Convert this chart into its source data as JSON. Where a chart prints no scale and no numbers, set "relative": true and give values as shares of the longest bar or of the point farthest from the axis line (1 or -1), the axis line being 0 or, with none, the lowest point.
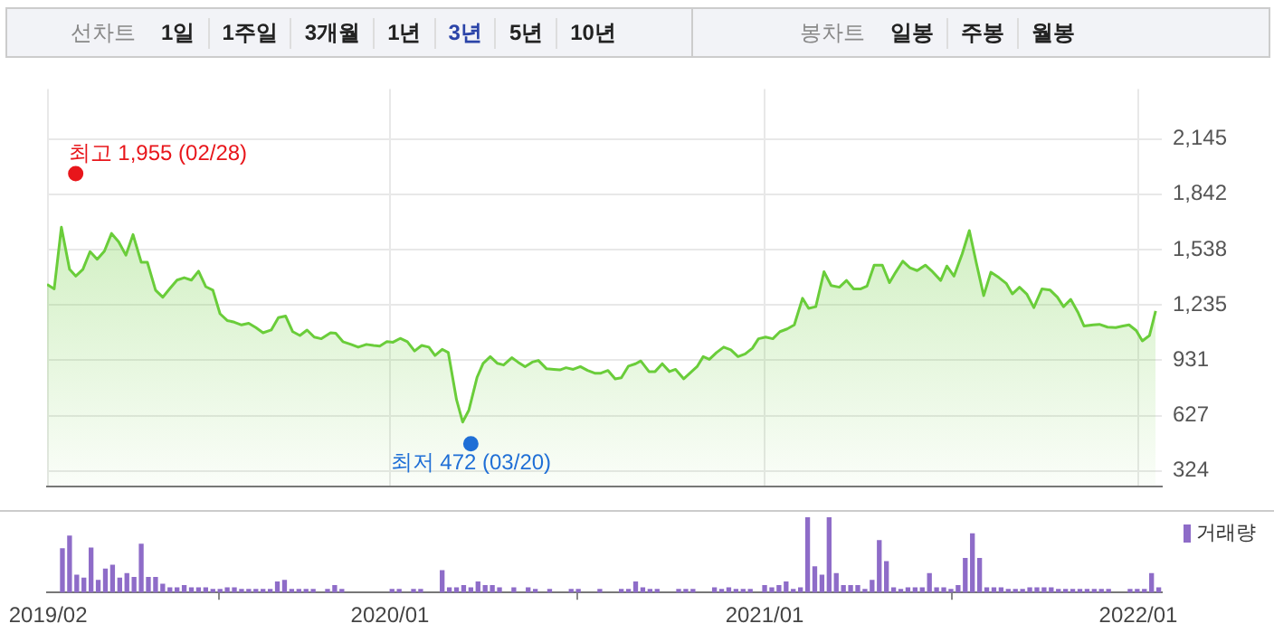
{
  "chart_data": [
    {
      "type": "other",
      "annotations": [
        "선차트",
        "1일",
        "1주일",
        "3개월",
        "1년",
        "3년",
        "5년",
        "10년",
        "봉차트",
        "일봉",
        "주봉",
        "월봉"
      ]
    },
    {
      "type": "area",
      "grid": true,
      "tick_labels": "y",
      "xlim": [
        "2019-01-31",
        "2022-01-24"
      ],
      "ylim": [
        240,
        2420
      ],
      "xticks": [
        {
          "value": "2019-02-01",
          "label": null
        },
        {
          "value": "2020-01-01",
          "label": null
        },
        {
          "value": "2021-01-01",
          "label": null
        },
        {
          "value": "2022-01-01",
          "label": null
        }
      ],
      "yticks": [
        {
          "value": 324,
          "label": "324"
        },
        {
          "value": 627,
          "label": "627"
        },
        {
          "value": 931,
          "label": "931"
        },
        {
          "value": 1235,
          "label": "1,235"
        },
        {
          "value": 1538,
          "label": "1,538"
        },
        {
          "value": 1842,
          "label": "1,842"
        },
        {
          "value": 2145,
          "label": "2,145"
        }
      ],
      "annotations": [
        {
          "text": "최고 1,955 (02/28)",
          "x": "2019-02-28",
          "y": 1955
        },
        {
          "text": "최저 472 (03/20)",
          "x": "2020-03-20",
          "y": 472
        }
      ],
      "series": [
        {
          "type": "scatter",
          "color": "#e8161b",
          "x": [
            "2019-02-28"
          ],
          "values": [
            1955
          ]
        },
        {
          "type": "scatter",
          "color": "#1f6fd6",
          "x": [
            "2020-03-20"
          ],
          "values": [
            472
          ]
        },
        {
          "color": "#6acd3a",
          "x": [
            "2019-01-31",
            "2019-02-07",
            "2019-02-14",
            "2019-02-22",
            "2019-02-28",
            "2019-03-07",
            "2019-03-14",
            "2019-03-21",
            "2019-03-28",
            "2019-04-04",
            "2019-04-11",
            "2019-04-18",
            "2019-04-25",
            "2019-05-03",
            "2019-05-09",
            "2019-05-17",
            "2019-05-24",
            "2019-05-31",
            "2019-06-07",
            "2019-06-14",
            "2019-06-21",
            "2019-06-28",
            "2019-07-05",
            "2019-07-12",
            "2019-07-19",
            "2019-07-26",
            "2019-08-02",
            "2019-08-09",
            "2019-08-16",
            "2019-08-23",
            "2019-08-30",
            "2019-09-07",
            "2019-09-14",
            "2019-09-21",
            "2019-09-28",
            "2019-10-05",
            "2019-10-12",
            "2019-10-19",
            "2019-10-26",
            "2019-11-04",
            "2019-11-09",
            "2019-11-16",
            "2019-11-24",
            "2019-12-01",
            "2019-12-09",
            "2019-12-16",
            "2019-12-22",
            "2019-12-29",
            "2020-01-04",
            "2020-01-11",
            "2020-01-18",
            "2020-01-25",
            "2020-02-01",
            "2020-02-08",
            "2020-02-14",
            "2020-02-21",
            "2020-02-27",
            "2020-03-06",
            "2020-03-12",
            "2020-03-18",
            "2020-03-26",
            "2020-04-01",
            "2020-04-08",
            "2020-04-15",
            "2020-04-21",
            "2020-04-29",
            "2020-05-05",
            "2020-05-12",
            "2020-05-19",
            "2020-05-25",
            "2020-06-02",
            "2020-06-09",
            "2020-06-15",
            "2020-06-21",
            "2020-06-28",
            "2020-07-05",
            "2020-07-12",
            "2020-07-19",
            "2020-07-25",
            "2020-08-01",
            "2020-08-08",
            "2020-08-14",
            "2020-08-21",
            "2020-08-28",
            "2020-09-02",
            "2020-09-10",
            "2020-09-16",
            "2020-09-23",
            "2020-09-30",
            "2020-10-06",
            "2020-10-14",
            "2020-10-20",
            "2020-10-27",
            "2020-11-02",
            "2020-11-08",
            "2020-11-15",
            "2020-11-22",
            "2020-11-29",
            "2020-12-06",
            "2020-12-13",
            "2020-12-20",
            "2020-12-26",
            "2021-01-02",
            "2021-01-09",
            "2021-01-16",
            "2021-01-23",
            "2021-01-30",
            "2021-02-07",
            "2021-02-13",
            "2021-02-20",
            "2021-02-28",
            "2021-03-07",
            "2021-03-15",
            "2021-03-22",
            "2021-03-29",
            "2021-04-05",
            "2021-04-11",
            "2021-04-18",
            "2021-04-26",
            "2021-05-03",
            "2021-05-09",
            "2021-05-16",
            "2021-05-23",
            "2021-05-30",
            "2021-06-07",
            "2021-06-13",
            "2021-06-22",
            "2021-06-28",
            "2021-07-05",
            "2021-07-13",
            "2021-07-20",
            "2021-07-27",
            "2021-08-03",
            "2021-08-10",
            "2021-08-18",
            "2021-08-25",
            "2021-08-31",
            "2021-09-07",
            "2021-09-14",
            "2021-09-21",
            "2021-09-29",
            "2021-10-07",
            "2021-10-14",
            "2021-10-20",
            "2021-10-27",
            "2021-11-03",
            "2021-11-09",
            "2021-11-18",
            "2021-11-24",
            "2021-12-02",
            "2021-12-10",
            "2021-12-17",
            "2021-12-23",
            "2021-12-30",
            "2022-01-05",
            "2022-01-12",
            "2022-01-18"
          ],
          "values": [
            1347,
            1323,
            1661,
            1430,
            1393,
            1430,
            1527,
            1485,
            1530,
            1627,
            1581,
            1508,
            1621,
            1469,
            1469,
            1316,
            1277,
            1325,
            1371,
            1384,
            1371,
            1420,
            1335,
            1316,
            1186,
            1149,
            1140,
            1125,
            1134,
            1110,
            1082,
            1097,
            1165,
            1174,
            1088,
            1067,
            1097,
            1058,
            1049,
            1082,
            1079,
            1033,
            1018,
            1003,
            1018,
            1012,
            1009,
            1033,
            1030,
            1051,
            1033,
            982,
            1012,
            1003,
            957,
            991,
            973,
            715,
            592,
            656,
            836,
            914,
            951,
            914,
            905,
            945,
            921,
            896,
            921,
            930,
            884,
            881,
            878,
            890,
            881,
            896,
            875,
            860,
            860,
            875,
            829,
            835,
            899,
            912,
            927,
            869,
            869,
            912,
            869,
            881,
            829,
            860,
            896,
            951,
            936,
            973,
            1003,
            988,
            951,
            966,
            997,
            1049,
            1058,
            1049,
            1088,
            1103,
            1125,
            1271,
            1216,
            1225,
            1417,
            1341,
            1332,
            1369,
            1323,
            1323,
            1338,
            1453,
            1453,
            1357,
            1414,
            1475,
            1439,
            1423,
            1453,
            1423,
            1369,
            1448,
            1393,
            1515,
            1643,
            1460,
            1286,
            1414,
            1384,
            1353,
            1295,
            1332,
            1295,
            1220,
            1323,
            1316,
            1277,
            1225,
            1265,
            1195,
            1119,
            1125,
            1128,
            1113,
            1110,
            1119,
            1125,
            1094,
            1037,
            1067,
            1201
          ]
        }
      ]
    },
    {
      "type": "bar",
      "relative": true,
      "tick_labels": "x",
      "legend": "top right",
      "xlim": [
        "2019-01-31",
        "2022-01-24"
      ],
      "xticks": [
        {
          "value": "2019-02-01",
          "label": "2019/02"
        },
        {
          "value": "2020-01-01",
          "label": "2020/01"
        },
        {
          "value": "2021-01-01",
          "label": "2021/01"
        },
        {
          "value": "2022-01-01",
          "label": "2022/01"
        }
      ],
      "series": [
        {
          "name": "거래량",
          "color": "#8e6cc8",
          "x": [
            "2019-02-15",
            "2019-02-22",
            "2019-03-01",
            "2019-03-08",
            "2019-03-15",
            "2019-03-22",
            "2019-03-29",
            "2019-04-05",
            "2019-04-12",
            "2019-04-19",
            "2019-04-26",
            "2019-05-03",
            "2019-05-10",
            "2019-05-17",
            "2019-05-24",
            "2019-05-31",
            "2019-06-07",
            "2019-06-14",
            "2019-06-21",
            "2019-06-28",
            "2019-07-05",
            "2019-07-12",
            "2019-07-19",
            "2019-07-26",
            "2019-08-02",
            "2019-08-09",
            "2019-08-16",
            "2019-08-23",
            "2019-08-30",
            "2019-09-06",
            "2019-09-13",
            "2019-09-20",
            "2019-09-27",
            "2019-10-04",
            "2019-10-11",
            "2019-10-18",
            "2019-10-25",
            "2019-11-01",
            "2019-11-08",
            "2019-11-15",
            "2019-11-22",
            "2019-11-29",
            "2019-12-06",
            "2019-12-13",
            "2019-12-20",
            "2019-12-27",
            "2020-01-03",
            "2020-01-10",
            "2020-01-17",
            "2020-01-24",
            "2020-01-31",
            "2020-02-07",
            "2020-02-14",
            "2020-02-21",
            "2020-02-28",
            "2020-03-06",
            "2020-03-13",
            "2020-03-20",
            "2020-03-27",
            "2020-04-03",
            "2020-04-10",
            "2020-04-17",
            "2020-04-24",
            "2020-05-01",
            "2020-05-08",
            "2020-05-15",
            "2020-05-22",
            "2020-05-29",
            "2020-06-05",
            "2020-06-12",
            "2020-06-19",
            "2020-06-26",
            "2020-07-03",
            "2020-07-10",
            "2020-07-17",
            "2020-07-24",
            "2020-07-31",
            "2020-08-07",
            "2020-08-14",
            "2020-08-21",
            "2020-08-28",
            "2020-09-04",
            "2020-09-11",
            "2020-09-18",
            "2020-09-25",
            "2020-10-02",
            "2020-10-09",
            "2020-10-16",
            "2020-10-23",
            "2020-10-30",
            "2020-11-06",
            "2020-11-13",
            "2020-11-20",
            "2020-11-27",
            "2020-12-04",
            "2020-12-11",
            "2020-12-18",
            "2020-12-25",
            "2021-01-01",
            "2021-01-08",
            "2021-01-15",
            "2021-01-22",
            "2021-01-29",
            "2021-02-05",
            "2021-02-12",
            "2021-02-19",
            "2021-02-26",
            "2021-03-05",
            "2021-03-12",
            "2021-03-19",
            "2021-03-26",
            "2021-04-02",
            "2021-04-09",
            "2021-04-16",
            "2021-04-23",
            "2021-04-30",
            "2021-05-07",
            "2021-05-14",
            "2021-05-21",
            "2021-05-28",
            "2021-06-04",
            "2021-06-11",
            "2021-06-18",
            "2021-06-25",
            "2021-07-02",
            "2021-07-09",
            "2021-07-16",
            "2021-07-23",
            "2021-07-30",
            "2021-08-06",
            "2021-08-13",
            "2021-08-20",
            "2021-08-27",
            "2021-09-03",
            "2021-09-10",
            "2021-09-17",
            "2021-09-24",
            "2021-10-01",
            "2021-10-08",
            "2021-10-15",
            "2021-10-22",
            "2021-10-29",
            "2021-11-05",
            "2021-11-12",
            "2021-11-19",
            "2021-11-26",
            "2021-12-03",
            "2021-12-10",
            "2021-12-17",
            "2021-12-24",
            "2021-12-31",
            "2022-01-07",
            "2022-01-14",
            "2022-01-21"
          ],
          "values": [
            0.58,
            0.75,
            0.23,
            0.19,
            0.59,
            0.16,
            0.31,
            0.36,
            0.19,
            0.25,
            0.2,
            0.64,
            0.2,
            0.2,
            0.11,
            0.06,
            0.06,
            0.09,
            0.06,
            0.06,
            0.06,
            0.04,
            0.04,
            0.06,
            0.06,
            0.04,
            0.04,
            0.04,
            0.04,
            0.04,
            0.14,
            0.16,
            0.04,
            0.04,
            0.04,
            0.04,
            null,
            0.04,
            0.09,
            0.04,
            null,
            null,
            null,
            null,
            null,
            null,
            0.04,
            0.04,
            null,
            0.04,
            0.04,
            null,
            null,
            0.29,
            0.06,
            0.06,
            0.09,
            0.06,
            0.14,
            0.09,
            0.09,
            0.06,
            null,
            0.06,
            null,
            0.06,
            0.04,
            null,
            0.04,
            null,
            null,
            0.04,
            0.04,
            null,
            null,
            0.04,
            null,
            null,
            0.04,
            0.04,
            0.14,
            0.06,
            0.04,
            0.04,
            null,
            null,
            0.04,
            0.04,
            0.04,
            null,
            null,
            0.06,
            0.04,
            0.06,
            0.04,
            0.04,
            0.04,
            null,
            0.09,
            0.06,
            0.09,
            0.14,
            0.04,
            0.06,
            1,
            0.34,
            0.23,
            1,
            0.25,
            0.09,
            0.09,
            0.09,
            0.04,
            0.16,
            0.69,
            0.41,
            0.06,
            0.04,
            0.06,
            0.06,
            0.06,
            0.25,
            0.06,
            0.06,
            0.04,
            0.09,
            0.45,
            0.78,
            0.45,
            0.06,
            0.06,
            0.06,
            0.04,
            0.04,
            0.04,
            0.06,
            0.06,
            0.06,
            0.06,
            0.04,
            0.04,
            0.04,
            0.04,
            0.04,
            0.04,
            0.04,
            0.04,
            null,
            null,
            0.04,
            0.04,
            0.04,
            0.25,
            0.06
          ]
        }
      ]
    }
  ]
}
